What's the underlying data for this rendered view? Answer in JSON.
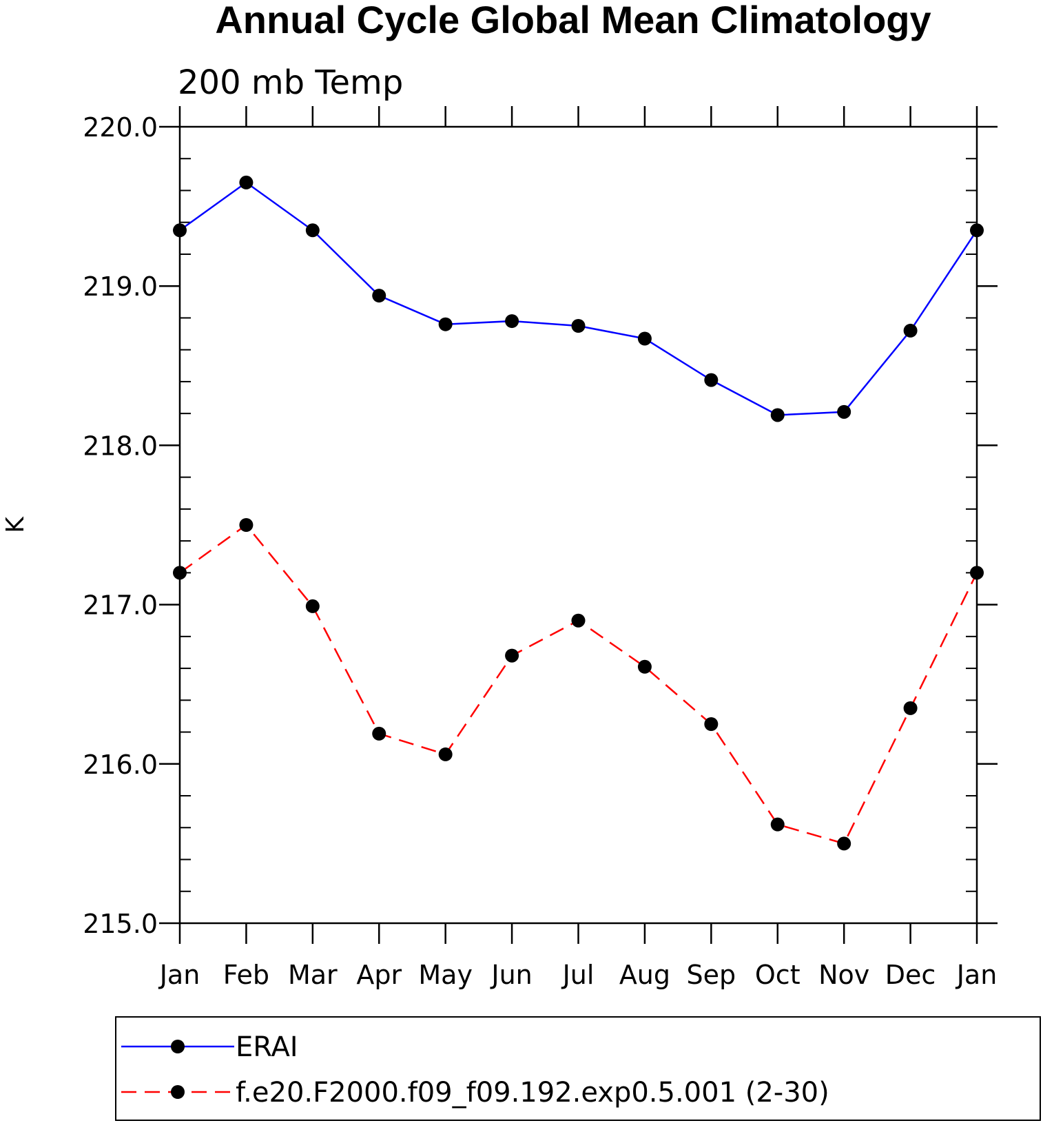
{
  "chart_data": {
    "type": "line",
    "title": "Annual Cycle Global Mean Climatology",
    "subtitle": "200 mb Temp",
    "xlabel": "",
    "ylabel": "K",
    "categories": [
      "Jan",
      "Feb",
      "Mar",
      "Apr",
      "May",
      "Jun",
      "Jul",
      "Aug",
      "Sep",
      "Oct",
      "Nov",
      "Dec",
      "Jan"
    ],
    "ylim": [
      215.0,
      220.0
    ],
    "yticks": [
      215.0,
      216.0,
      217.0,
      218.0,
      219.0,
      220.0
    ],
    "ytick_labels": [
      "215.0",
      "216.0",
      "217.0",
      "218.0",
      "219.0",
      "220.0"
    ],
    "y_minor_step": 0.2,
    "grid": false,
    "legend_position": "bottom",
    "series": [
      {
        "name": "ERAI",
        "color": "#0000ff",
        "dashed": false,
        "marker": "filled-circle",
        "values": [
          219.35,
          219.65,
          219.35,
          218.94,
          218.76,
          218.78,
          218.75,
          218.67,
          218.41,
          218.19,
          218.21,
          218.72,
          219.35
        ]
      },
      {
        "name": "f.e20.F2000.f09_f09.192.exp0.5.001 (2-30)",
        "color": "#ff0000",
        "dashed": true,
        "marker": "filled-circle",
        "values": [
          217.2,
          217.5,
          216.99,
          216.19,
          216.06,
          216.68,
          216.9,
          216.61,
          216.25,
          215.62,
          215.5,
          216.35,
          217.2
        ]
      }
    ]
  }
}
